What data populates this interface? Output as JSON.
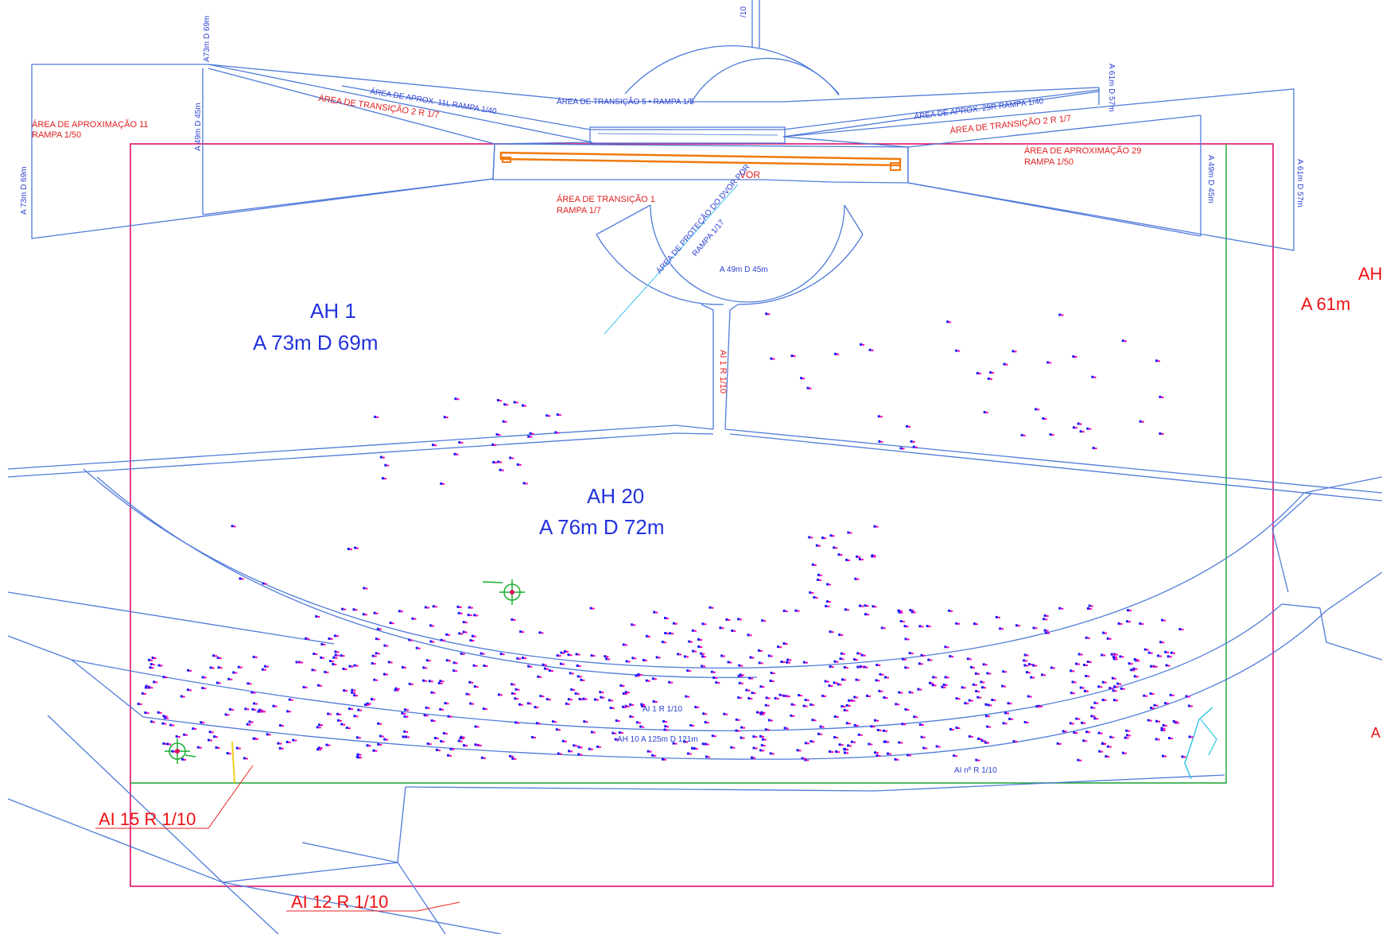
{
  "colors": {
    "surface_lines": "#4f7bd9",
    "red_text": "#e02020",
    "blue_text": "#2233dd",
    "frame_magenta": "#e0106e",
    "frame_green": "#18a030",
    "runway": "#f07a10",
    "vor_line": "#58c8f0",
    "obstacle_a": "#1a1aff",
    "obstacle_b": "#ff00aa"
  },
  "labels": {
    "top_frag": "/10",
    "a73_d69": "A73m  D 69m",
    "a49_d45_left": "A 49m  D 45m",
    "a73_d69_side": "A 73m  D 69m",
    "approach11_title": "ÁREA DE APROXIMAÇÃO 11",
    "approach11_ramp": "RAMPA 1/50",
    "transition2_left": "ÁREA DE TRANSIÇÃO 2  R 1/7",
    "approach11_slope": "ÁREA DE APROX. 11L RAMPA 1/40",
    "transition5": "ÁREA DE TRANSIÇÃO 5 • RAMPA 1/5",
    "approach29_slope": "ÁREA DE APROX. 29R  RAMPA 1/40",
    "transition2_right": "ÁREA DE TRANSIÇÃO 2  R 1/7",
    "approach29_title": "ÁREA DE APROXIMAÇÃO 29",
    "approach29_ramp": "RAMPA 1/50",
    "a61_d57_top": "A 61m  D 57m",
    "a49_d45_right": "A 49m  D 45m",
    "a61_d57_right": "A 61m  D 57m",
    "vor": "VOR",
    "transition1_title": "ÁREA DE TRANSIÇÃO 1",
    "transition1_ramp": "RAMPA 1/7",
    "vor_protection": "ÁREA DE PROTEÇÃO DO DVOR POR",
    "vor_protection_ramp": "RAMPA 1/17",
    "a49_d45_center": "A 49m  D 45m",
    "ah1_title": "AH 1",
    "ah1_values": "A 73m    D 69m",
    "ai1_vertical": "AI 1  R 1/10",
    "ah20_title": "AH 20",
    "ah20_values": "A 76m    D 72m",
    "ah_right_title": "AH",
    "ah_right_values": "A 61m",
    "ai1_r110": "AI 1   R 1/10",
    "ah10": "AH 10    A 125m  D 121m",
    "ai_n_r110": "AI  nº  R 1/10",
    "ai15": "AI 15   R 1/10",
    "ai12": "AI 12   R 1/10",
    "right_edge_frag": "A"
  }
}
